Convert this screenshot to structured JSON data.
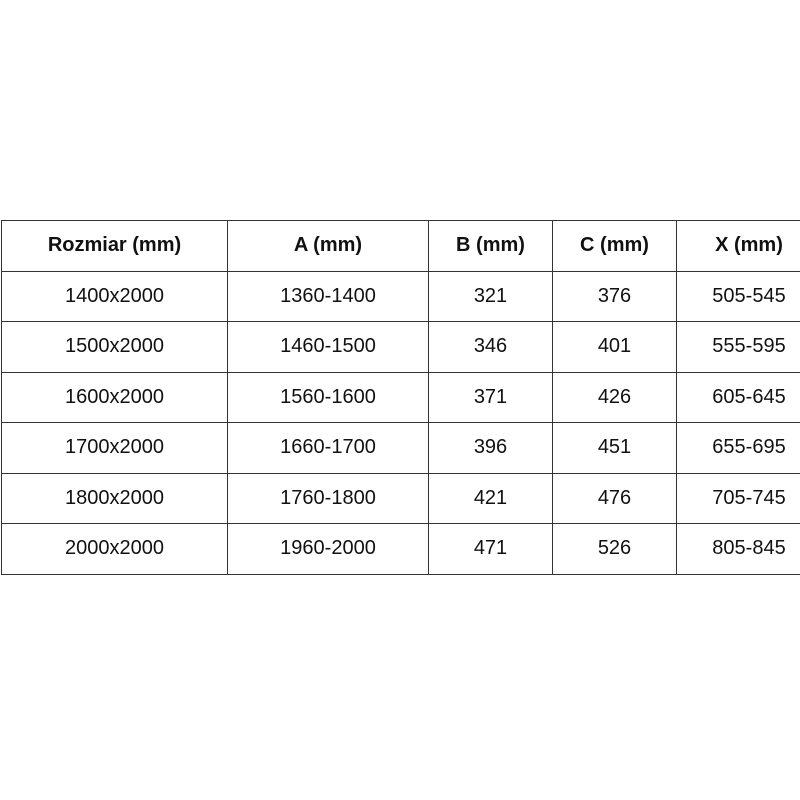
{
  "table": {
    "headers": [
      "Rozmiar (mm)",
      "A (mm)",
      "B (mm)",
      "C (mm)",
      "X (mm)"
    ],
    "rows": [
      [
        "1400x2000",
        "1360-1400",
        "321",
        "376",
        "505-545"
      ],
      [
        "1500x2000",
        "1460-1500",
        "346",
        "401",
        "555-595"
      ],
      [
        "1600x2000",
        "1560-1600",
        "371",
        "426",
        "605-645"
      ],
      [
        "1700x2000",
        "1660-1700",
        "396",
        "451",
        "655-695"
      ],
      [
        "1800x2000",
        "1760-1800",
        "421",
        "476",
        "705-745"
      ],
      [
        "2000x2000",
        "1960-2000",
        "471",
        "526",
        "805-845"
      ]
    ]
  }
}
